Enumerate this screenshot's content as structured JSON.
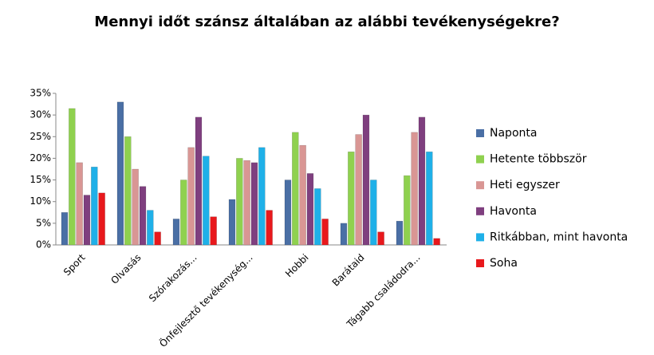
{
  "chart_data": {
    "type": "bar",
    "title": "Mennyi időt szánsz általában az alábbi tevékenységekre?",
    "categories": [
      "Sport",
      "Olvasás",
      "Szórakozás...",
      "Önfejlesztő tevékenység...",
      "Hobbi",
      "Barátaid",
      "Tágabb családodra..."
    ],
    "series": [
      {
        "name": "Naponta",
        "color": "#4a6fa5",
        "values": [
          7.5,
          33,
          6,
          10.5,
          15,
          5,
          5.5
        ]
      },
      {
        "name": "Hetente többször",
        "color": "#8fd14f",
        "values": [
          31.5,
          25,
          15,
          20,
          26,
          21.5,
          16
        ]
      },
      {
        "name": "Heti egyszer",
        "color": "#d99694",
        "values": [
          19,
          17.5,
          22.5,
          19.5,
          23,
          25.5,
          26
        ]
      },
      {
        "name": "Havonta",
        "color": "#7f3f7f",
        "values": [
          11.5,
          13.5,
          29.5,
          19,
          16.5,
          30,
          29.5
        ]
      },
      {
        "name": "Ritkábban, mint havonta",
        "color": "#1fb0e8",
        "values": [
          18,
          8,
          20.5,
          22.5,
          13,
          15,
          21.5
        ]
      },
      {
        "name": "Soha",
        "color": "#e8181c",
        "values": [
          12,
          3,
          6.5,
          8,
          6,
          3,
          1.5
        ]
      }
    ],
    "ylim": [
      0,
      35
    ],
    "yticks": [
      {
        "value": 0,
        "label": "0%"
      },
      {
        "value": 5,
        "label": "5%"
      },
      {
        "value": 10,
        "label": "10%"
      },
      {
        "value": 15,
        "label": "15%"
      },
      {
        "value": 20,
        "label": "20%"
      },
      {
        "value": 25,
        "label": "25%"
      },
      {
        "value": 30,
        "label": "30%"
      },
      {
        "value": 35,
        "label": "35%"
      }
    ],
    "grid": false,
    "legend_position": "right"
  }
}
